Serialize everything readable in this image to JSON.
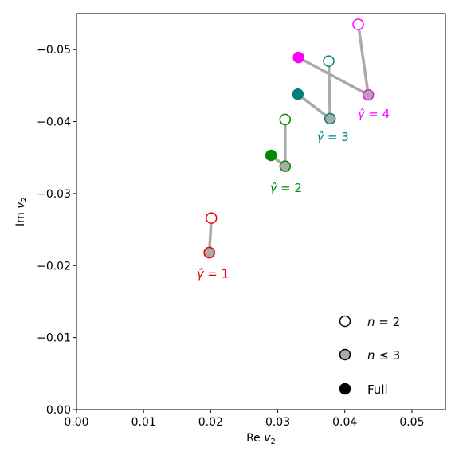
{
  "chart_data": {
    "type": "scatter",
    "title": "",
    "xlabel_base": "Re ",
    "xlabel_var": "v",
    "xlabel_sub": "2",
    "ylabel_base": "Im ",
    "ylabel_var": "v",
    "ylabel_sub": "2",
    "xlim": [
      0.0,
      0.055
    ],
    "ylim": [
      0.0,
      -0.055
    ],
    "x_inverted_display": false,
    "y_axis_inverted": true,
    "xticks": [
      0.0,
      0.01,
      0.02,
      0.03,
      0.04,
      0.05
    ],
    "xtick_labels": [
      "0.00",
      "0.01",
      "0.02",
      "0.03",
      "0.04",
      "0.05"
    ],
    "yticks": [
      0.0,
      -0.01,
      -0.02,
      -0.03,
      -0.04,
      -0.05
    ],
    "ytick_labels": [
      "0.00",
      "−0.01",
      "−0.02",
      "−0.03",
      "−0.04",
      "−0.05"
    ],
    "grid": false,
    "connector_color": "#aaaaaa",
    "series": [
      {
        "gamma": 1,
        "annotation_prefix": "γ̂",
        "annotation_eq": " = 1",
        "color": "#e8000b",
        "points": {
          "n2": [
            0.0201,
            -0.0266
          ],
          "n3": [
            0.0198,
            -0.0218
          ],
          "full": [
            0.0198,
            -0.0218
          ]
        },
        "label_pos": [
          0.0203,
          -0.0183
        ]
      },
      {
        "gamma": 2,
        "annotation_prefix": "γ̂",
        "annotation_eq": " = 2",
        "color": "#008a00",
        "points": {
          "n2": [
            0.0311,
            -0.0403
          ],
          "n3": [
            0.0311,
            -0.0338
          ],
          "full": [
            0.029,
            -0.0353
          ]
        },
        "label_pos": [
          0.0312,
          -0.0302
        ]
      },
      {
        "gamma": 3,
        "annotation_prefix": "γ̂",
        "annotation_eq": " = 3",
        "color": "#00807f",
        "points": {
          "n2": [
            0.0376,
            -0.0484
          ],
          "n3": [
            0.0378,
            -0.0404
          ],
          "full": [
            0.033,
            -0.0438
          ]
        },
        "label_pos": [
          0.0382,
          -0.0373
        ]
      },
      {
        "gamma": 4,
        "annotation_prefix": "γ̂",
        "annotation_eq": " = 4",
        "color": "#ff00ff",
        "points": {
          "n2": [
            0.042,
            -0.0535
          ],
          "n3": [
            0.0435,
            -0.0437
          ],
          "full": [
            0.0331,
            -0.0489
          ]
        },
        "label_pos": [
          0.0443,
          -0.0405
        ]
      }
    ],
    "legend": {
      "placement": "bottom-right",
      "entries": [
        {
          "kind": "n2",
          "prefix": "n",
          "rel": " = ",
          "value": "2"
        },
        {
          "kind": "n3",
          "prefix": "n",
          "rel": " ≤ ",
          "value": "3"
        },
        {
          "kind": "full",
          "label": "Full"
        }
      ]
    }
  }
}
